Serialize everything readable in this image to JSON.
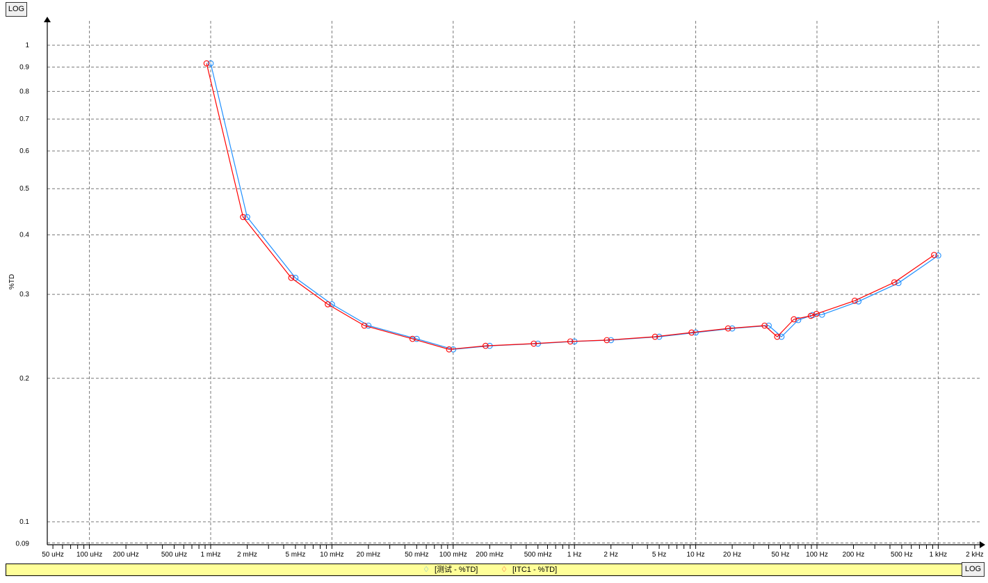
{
  "x_axis_scale_button": "LOG",
  "y_axis_scale_button": "LOG",
  "chart_data": {
    "type": "line",
    "ylabel": "%TD",
    "xlabel": "",
    "x_scale": "log",
    "y_scale": "log",
    "xlim": [
      4e-05,
      2000.0
    ],
    "ylim": [
      0.09,
      1.13
    ],
    "grid": true,
    "legend_placement": "bottom",
    "x_tick_labels": [
      {
        "value": 5e-05,
        "label": "50 uHz"
      },
      {
        "value": 0.0001,
        "label": "100 uHz"
      },
      {
        "value": 0.0002,
        "label": "200 uHz"
      },
      {
        "value": 0.0005,
        "label": "500 uHz"
      },
      {
        "value": 0.001,
        "label": "1 mHz"
      },
      {
        "value": 0.002,
        "label": "2 mHz"
      },
      {
        "value": 0.005,
        "label": "5 mHz"
      },
      {
        "value": 0.01,
        "label": "10 mHz"
      },
      {
        "value": 0.02,
        "label": "20 mHz"
      },
      {
        "value": 0.05,
        "label": "50 mHz"
      },
      {
        "value": 0.1,
        "label": "100 mHz"
      },
      {
        "value": 0.2,
        "label": "200 mHz"
      },
      {
        "value": 0.5,
        "label": "500 mHz"
      },
      {
        "value": 1,
        "label": "1 Hz"
      },
      {
        "value": 2,
        "label": "2 Hz"
      },
      {
        "value": 5,
        "label": "5 Hz"
      },
      {
        "value": 10,
        "label": "10 Hz"
      },
      {
        "value": 20,
        "label": "20 Hz"
      },
      {
        "value": 50,
        "label": "50 Hz"
      },
      {
        "value": 100,
        "label": "100 Hz"
      },
      {
        "value": 200,
        "label": "200 Hz"
      },
      {
        "value": 500,
        "label": "500 Hz"
      },
      {
        "value": 1000,
        "label": "1 kHz"
      },
      {
        "value": 2000,
        "label": "2 kHz"
      }
    ],
    "y_tick_labels": [
      {
        "value": 0.09,
        "label": "0.09"
      },
      {
        "value": 0.1,
        "label": "0.1"
      },
      {
        "value": 0.2,
        "label": "0.2"
      },
      {
        "value": 0.3,
        "label": "0.3"
      },
      {
        "value": 0.4,
        "label": "0.4"
      },
      {
        "value": 0.5,
        "label": "0.5"
      },
      {
        "value": 0.6,
        "label": "0.6"
      },
      {
        "value": 0.7,
        "label": "0.7"
      },
      {
        "value": 0.8,
        "label": "0.8"
      },
      {
        "value": 0.9,
        "label": "0.9"
      },
      {
        "value": 1,
        "label": "1"
      }
    ],
    "series": [
      {
        "name": "[测试 - %TD]",
        "color": "#1e8fff",
        "x": [
          0.001,
          0.002,
          0.005,
          0.01,
          0.02,
          0.05,
          0.1,
          0.2,
          0.5,
          1,
          2,
          5,
          10,
          20,
          40,
          51,
          70,
          92,
          110,
          220,
          470,
          1000
        ],
        "y": [
          0.916,
          0.436,
          0.325,
          0.286,
          0.258,
          0.242,
          0.23,
          0.234,
          0.2365,
          0.239,
          0.2405,
          0.2445,
          0.2495,
          0.2545,
          0.258,
          0.2445,
          0.265,
          0.2715,
          0.272,
          0.29,
          0.317,
          0.362
        ]
      },
      {
        "name": "[ITC1 - %TD]",
        "color": "#ff0000",
        "x": [
          0.000925,
          0.00185,
          0.00462,
          0.00925,
          0.0185,
          0.0462,
          0.0925,
          0.185,
          0.462,
          0.925,
          1.85,
          4.62,
          9.25,
          18.5,
          37,
          47,
          64.5,
          89,
          99,
          205,
          435,
          925
        ],
        "y": [
          0.916,
          0.436,
          0.325,
          0.286,
          0.258,
          0.242,
          0.23,
          0.234,
          0.2365,
          0.239,
          0.2405,
          0.2445,
          0.2495,
          0.2545,
          0.258,
          0.2445,
          0.266,
          0.2705,
          0.273,
          0.291,
          0.318,
          0.363
        ]
      }
    ]
  }
}
